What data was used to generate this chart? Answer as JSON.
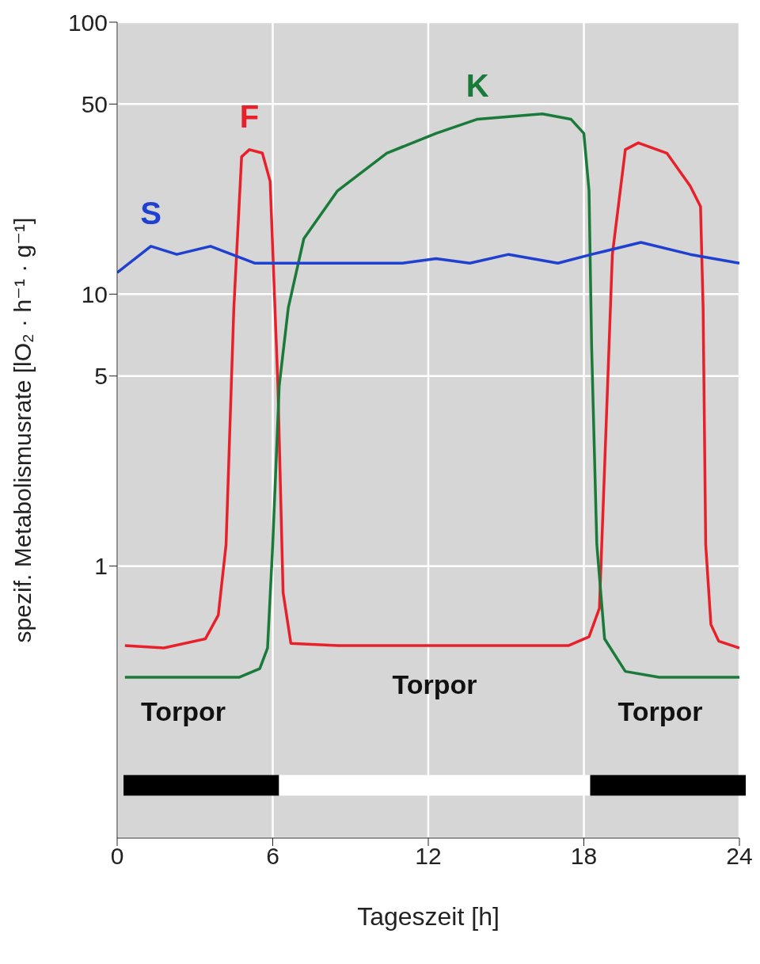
{
  "chart_data": {
    "type": "line",
    "xlabel": "Tageszeit [h]",
    "ylabel": "spezif. Metabolismusrate [lO₂ · h⁻¹ · g⁻¹]",
    "log": "y",
    "xlim": [
      0,
      24
    ],
    "xticks": [
      0,
      6,
      12,
      18,
      24
    ],
    "ylim": [
      0.1,
      100
    ],
    "yticks": [
      1,
      5,
      10,
      50,
      100
    ],
    "grid": true,
    "legend": false,
    "marker": "none",
    "line_style": "solid",
    "series": [
      {
        "name": "F",
        "color": "#e8202a",
        "x": [
          0.3,
          1.8,
          3.4,
          3.9,
          4.2,
          4.5,
          4.8,
          5.1,
          5.6,
          5.9,
          6.2,
          6.4,
          6.7,
          8.5,
          17.4,
          18.2,
          18.6,
          18.8,
          19.1,
          19.6,
          20.1,
          21.2,
          22.1,
          22.5,
          22.6,
          22.7,
          22.9,
          23.2,
          24
        ],
        "values": [
          0.51,
          0.5,
          0.54,
          0.66,
          1.2,
          8.9,
          32,
          34,
          33,
          26,
          4.6,
          0.8,
          0.52,
          0.51,
          0.51,
          0.55,
          0.7,
          2.3,
          14,
          34,
          36,
          33,
          25,
          21,
          8.9,
          1.2,
          0.61,
          0.53,
          0.5
        ]
      },
      {
        "name": "K",
        "color": "#1a7a3a",
        "x": [
          0.3,
          4.7,
          5.5,
          5.8,
          6.0,
          6.25,
          6.6,
          7.2,
          8.5,
          10.4,
          12.3,
          13.9,
          16.4,
          17.5,
          18.0,
          18.2,
          18.3,
          18.5,
          18.8,
          19.6,
          20.9,
          24
        ],
        "values": [
          0.39,
          0.39,
          0.42,
          0.5,
          1.2,
          4.6,
          8.9,
          16,
          24,
          33,
          39,
          44,
          46,
          44,
          39,
          24,
          6.4,
          1.2,
          0.54,
          0.41,
          0.39,
          0.39
        ]
      },
      {
        "name": "S",
        "color": "#2040d0",
        "x": [
          0,
          1.3,
          2.3,
          3.6,
          5.3,
          7.5,
          9.1,
          11,
          12.3,
          13.6,
          15.1,
          17,
          18.3,
          20.2,
          22.1,
          24
        ],
        "values": [
          12,
          15,
          14,
          15,
          13,
          13,
          13,
          13,
          13.5,
          13,
          14,
          13,
          14,
          15.5,
          14,
          13
        ]
      }
    ],
    "annotations": [
      "Torpor",
      "Torpor",
      "Torpor"
    ]
  }
}
